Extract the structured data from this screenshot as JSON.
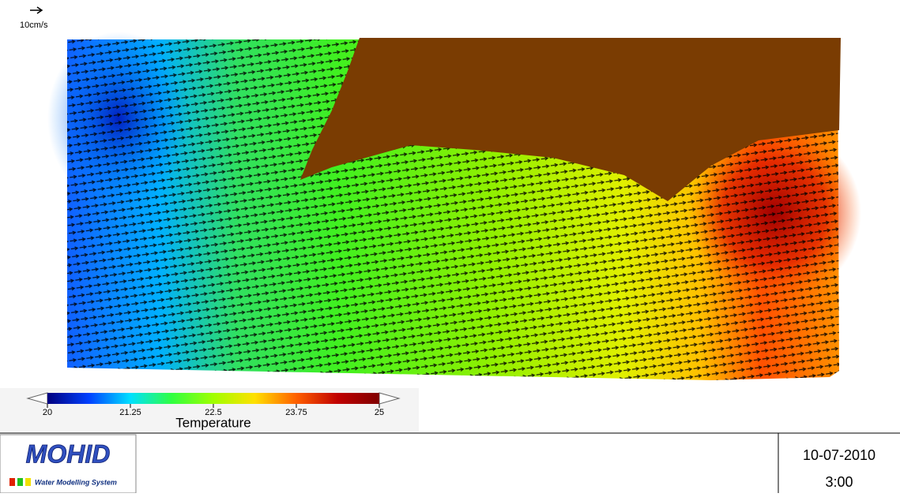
{
  "scale_arrow": {
    "label": "10cm/s"
  },
  "colorbar": {
    "title": "Temperature",
    "range": [
      20,
      25
    ],
    "ticks": [
      20,
      21.25,
      22.5,
      23.75,
      25
    ],
    "colors": [
      "#00007f",
      "#0040ff",
      "#00e0ff",
      "#30ff40",
      "#a0ff00",
      "#ffe000",
      "#ff6000",
      "#c00000",
      "#800000"
    ]
  },
  "footer": {
    "logo": "MOHID",
    "logo_subtitle": "Water Modelling System",
    "date": "10-07-2010",
    "time": "3:00"
  }
}
